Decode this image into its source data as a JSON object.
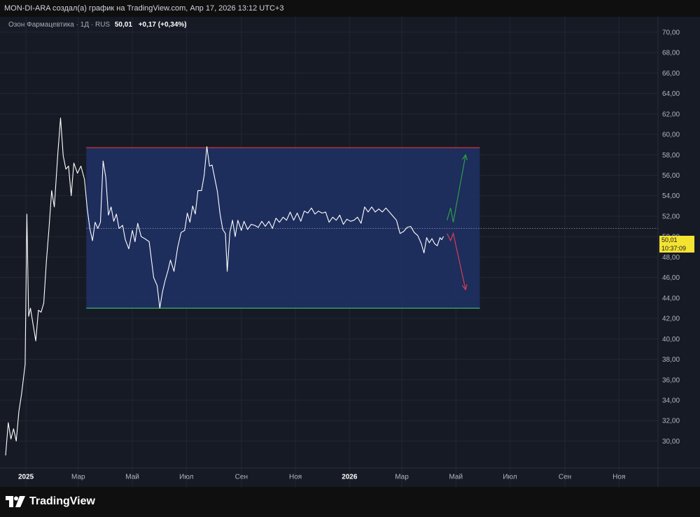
{
  "header": {
    "attribution": "MON-DI-ARA создал(а) график на TradingView.com, Апр 17, 2026 13:12 UTC+3"
  },
  "legend": {
    "symbol": "Озон Фармацевтика · 1Д · RUS",
    "last_price": "50,01",
    "change": "+0,17 (+0,34%)"
  },
  "price_tag": {
    "price": "50,01",
    "countdown": "10:37:09"
  },
  "footer": {
    "brand": "TradingView"
  },
  "colors": {
    "background": "#161a25",
    "line": "#ffffff",
    "range_fill": "#1e3166",
    "resistance": "#e03a3e",
    "support": "#3cb371",
    "arrow_up": "#2e9e48",
    "arrow_down": "#d63e53",
    "price_tag": "#f5e332"
  },
  "chart_data": {
    "type": "line",
    "series": [
      {
        "values": [
          [
            "2024-12-09",
            28.6
          ],
          [
            "2024-12-12",
            31.8
          ],
          [
            "2024-12-15",
            30.2
          ],
          [
            "2024-12-18",
            31.2
          ],
          [
            "2024-12-21",
            30.0
          ],
          [
            "2024-12-24",
            32.9
          ],
          [
            "2024-12-27",
            34.6
          ],
          [
            "2024-12-31",
            37.5
          ],
          [
            "2025-01-02",
            52.2
          ],
          [
            "2025-01-04",
            42.2
          ],
          [
            "2025-01-06",
            43.0
          ],
          [
            "2025-01-09",
            41.4
          ],
          [
            "2025-01-12",
            39.8
          ],
          [
            "2025-01-15",
            42.8
          ],
          [
            "2025-01-18",
            42.6
          ],
          [
            "2025-01-21",
            43.5
          ],
          [
            "2025-01-24",
            47.6
          ],
          [
            "2025-01-27",
            50.8
          ],
          [
            "2025-01-30",
            54.5
          ],
          [
            "2025-02-02",
            52.9
          ],
          [
            "2025-02-06",
            58.2
          ],
          [
            "2025-02-09",
            61.6
          ],
          [
            "2025-02-12",
            57.9
          ],
          [
            "2025-02-15",
            56.6
          ],
          [
            "2025-02-18",
            56.9
          ],
          [
            "2025-02-21",
            54.0
          ],
          [
            "2025-02-24",
            57.2
          ],
          [
            "2025-02-28",
            56.2
          ],
          [
            "2025-03-04",
            56.9
          ],
          [
            "2025-03-08",
            55.6
          ],
          [
            "2025-03-11",
            52.8
          ],
          [
            "2025-03-14",
            50.8
          ],
          [
            "2025-03-17",
            49.6
          ],
          [
            "2025-03-20",
            51.4
          ],
          [
            "2025-03-23",
            50.8
          ],
          [
            "2025-03-26",
            51.4
          ],
          [
            "2025-03-29",
            57.4
          ],
          [
            "2025-04-01",
            55.8
          ],
          [
            "2025-04-04",
            52.1
          ],
          [
            "2025-04-07",
            52.9
          ],
          [
            "2025-04-10",
            51.5
          ],
          [
            "2025-04-13",
            52.2
          ],
          [
            "2025-04-16",
            50.8
          ],
          [
            "2025-04-20",
            51.1
          ],
          [
            "2025-04-23",
            49.7
          ],
          [
            "2025-04-27",
            48.8
          ],
          [
            "2025-05-01",
            50.6
          ],
          [
            "2025-05-04",
            49.5
          ],
          [
            "2025-05-07",
            51.3
          ],
          [
            "2025-05-11",
            50.0
          ],
          [
            "2025-05-15",
            49.8
          ],
          [
            "2025-05-20",
            49.5
          ],
          [
            "2025-05-25",
            46.0
          ],
          [
            "2025-05-29",
            45.2
          ],
          [
            "2025-06-01",
            43.0
          ],
          [
            "2025-06-04",
            44.6
          ],
          [
            "2025-06-07",
            45.7
          ],
          [
            "2025-06-10",
            46.6
          ],
          [
            "2025-06-13",
            47.7
          ],
          [
            "2025-06-17",
            46.6
          ],
          [
            "2025-06-21",
            48.9
          ],
          [
            "2025-06-25",
            50.4
          ],
          [
            "2025-06-29",
            50.6
          ],
          [
            "2025-07-02",
            52.3
          ],
          [
            "2025-07-05",
            51.4
          ],
          [
            "2025-07-08",
            53.0
          ],
          [
            "2025-07-11",
            52.2
          ],
          [
            "2025-07-14",
            54.5
          ],
          [
            "2025-07-18",
            54.5
          ],
          [
            "2025-07-21",
            56.0
          ],
          [
            "2025-07-24",
            58.8
          ],
          [
            "2025-07-27",
            56.9
          ],
          [
            "2025-07-30",
            57.0
          ],
          [
            "2025-08-02",
            55.7
          ],
          [
            "2025-08-05",
            54.4
          ],
          [
            "2025-08-08",
            52.2
          ],
          [
            "2025-08-11",
            50.7
          ],
          [
            "2025-08-14",
            50.3
          ],
          [
            "2025-08-16",
            46.6
          ],
          [
            "2025-08-19",
            50.4
          ],
          [
            "2025-08-22",
            51.6
          ],
          [
            "2025-08-25",
            50.0
          ],
          [
            "2025-08-28",
            51.6
          ],
          [
            "2025-09-01",
            50.6
          ],
          [
            "2025-09-04",
            51.5
          ],
          [
            "2025-09-08",
            50.7
          ],
          [
            "2025-09-12",
            51.2
          ],
          [
            "2025-09-16",
            51.1
          ],
          [
            "2025-09-20",
            50.9
          ],
          [
            "2025-09-24",
            51.5
          ],
          [
            "2025-09-28",
            51.0
          ],
          [
            "2025-10-02",
            51.5
          ],
          [
            "2025-10-06",
            50.8
          ],
          [
            "2025-10-10",
            51.8
          ],
          [
            "2025-10-14",
            51.4
          ],
          [
            "2025-10-18",
            51.9
          ],
          [
            "2025-10-22",
            51.6
          ],
          [
            "2025-10-26",
            52.4
          ],
          [
            "2025-10-30",
            51.6
          ],
          [
            "2025-11-03",
            52.3
          ],
          [
            "2025-11-07",
            51.5
          ],
          [
            "2025-11-11",
            52.5
          ],
          [
            "2025-11-15",
            52.3
          ],
          [
            "2025-11-19",
            52.8
          ],
          [
            "2025-11-23",
            52.2
          ],
          [
            "2025-11-27",
            52.5
          ],
          [
            "2025-12-01",
            52.3
          ],
          [
            "2025-12-05",
            52.4
          ],
          [
            "2025-12-09",
            51.4
          ],
          [
            "2025-12-13",
            51.9
          ],
          [
            "2025-12-17",
            51.6
          ],
          [
            "2025-12-21",
            52.1
          ],
          [
            "2025-12-25",
            51.2
          ],
          [
            "2025-12-29",
            51.7
          ],
          [
            "2026-01-02",
            51.5
          ],
          [
            "2026-01-06",
            51.6
          ],
          [
            "2026-01-10",
            51.9
          ],
          [
            "2026-01-14",
            51.3
          ],
          [
            "2026-01-18",
            52.9
          ],
          [
            "2026-01-22",
            52.4
          ],
          [
            "2026-01-26",
            52.9
          ],
          [
            "2026-01-30",
            52.4
          ],
          [
            "2026-02-03",
            52.7
          ],
          [
            "2026-02-07",
            52.4
          ],
          [
            "2026-02-11",
            52.8
          ],
          [
            "2026-02-15",
            52.4
          ],
          [
            "2026-02-19",
            52.0
          ],
          [
            "2026-02-23",
            51.6
          ],
          [
            "2026-02-27",
            50.3
          ],
          [
            "2026-03-03",
            50.5
          ],
          [
            "2026-03-07",
            50.9
          ],
          [
            "2026-03-11",
            51.0
          ],
          [
            "2026-03-15",
            50.4
          ],
          [
            "2026-03-19",
            50.1
          ],
          [
            "2026-03-23",
            49.3
          ],
          [
            "2026-03-26",
            48.4
          ],
          [
            "2026-03-29",
            49.9
          ],
          [
            "2026-04-01",
            49.4
          ],
          [
            "2026-04-04",
            49.8
          ],
          [
            "2026-04-07",
            49.3
          ],
          [
            "2026-04-10",
            49.1
          ],
          [
            "2026-04-13",
            49.9
          ],
          [
            "2026-04-15",
            49.7
          ],
          [
            "2026-04-17",
            50.01
          ]
        ]
      }
    ],
    "x_ticks": [
      {
        "date": "2025-01-01",
        "label": "2025",
        "bold": true
      },
      {
        "date": "2025-03-01",
        "label": "Мар"
      },
      {
        "date": "2025-05-01",
        "label": "Май"
      },
      {
        "date": "2025-07-01",
        "label": "Июл"
      },
      {
        "date": "2025-09-01",
        "label": "Сен"
      },
      {
        "date": "2025-11-01",
        "label": "Ноя"
      },
      {
        "date": "2026-01-01",
        "label": "2026",
        "bold": true
      },
      {
        "date": "2026-03-01",
        "label": "Мар"
      },
      {
        "date": "2026-05-01",
        "label": "Май"
      },
      {
        "date": "2026-07-01",
        "label": "Июл"
      },
      {
        "date": "2026-09-01",
        "label": "Сен"
      },
      {
        "date": "2026-11-01",
        "label": "Ноя"
      }
    ],
    "y_ticks": [
      "30,00",
      "32,00",
      "34,00",
      "36,00",
      "38,00",
      "40,00",
      "42,00",
      "44,00",
      "46,00",
      "48,00",
      "50,00",
      "52,00",
      "54,00",
      "56,00",
      "58,00",
      "60,00",
      "62,00",
      "64,00",
      "66,00",
      "68,00",
      "70,00"
    ],
    "ylim": [
      27.5,
      71.5
    ],
    "xlim": [
      "2024-12-09",
      "2026-12-15"
    ],
    "grid": true,
    "current_price": 50.01,
    "reference_line": 50.8,
    "range_box": {
      "start": "2025-03-10",
      "end": "2026-05-28",
      "top": 58.7,
      "bottom": 43.0
    },
    "projections": [
      {
        "direction": "up",
        "points": [
          [
            "2026-04-21",
            51.6
          ],
          [
            "2026-04-25",
            52.8
          ],
          [
            "2026-04-28",
            51.4
          ],
          [
            "2026-05-12",
            58.0
          ]
        ]
      },
      {
        "direction": "down",
        "points": [
          [
            "2026-04-21",
            50.3
          ],
          [
            "2026-04-25",
            49.6
          ],
          [
            "2026-04-28",
            50.3
          ],
          [
            "2026-05-12",
            44.8
          ]
        ]
      }
    ]
  }
}
